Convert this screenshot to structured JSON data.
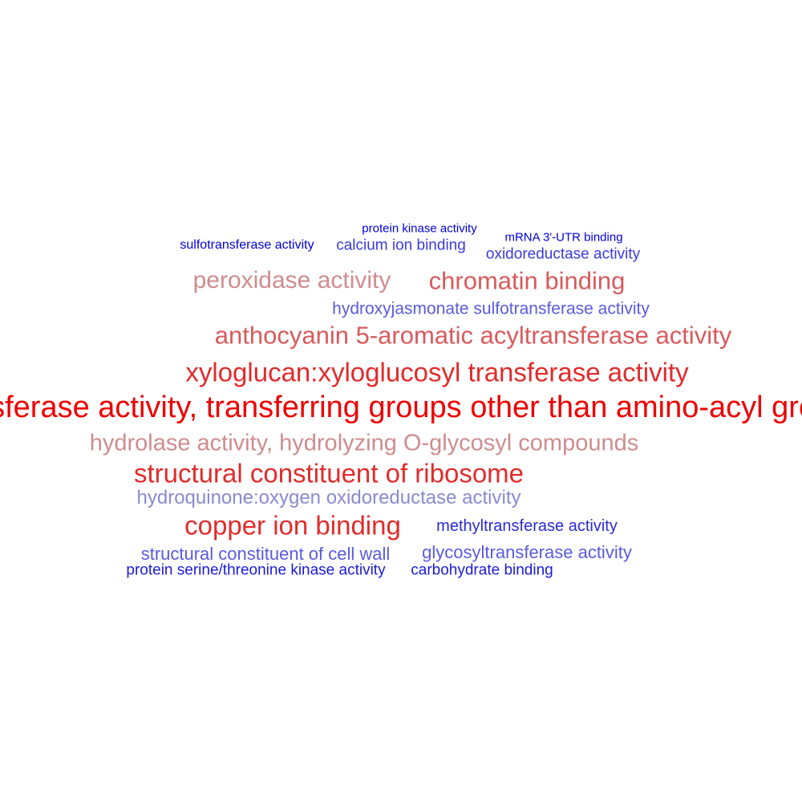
{
  "terms": [
    {
      "text": "sulfotransferase activity",
      "color": "#0000dd"
    },
    {
      "text": "protein kinase activity",
      "color": "#0000dd"
    },
    {
      "text": "calcium ion binding",
      "color": "#3a3ae0"
    },
    {
      "text": "mRNA 3'-UTR binding",
      "color": "#0000dd"
    },
    {
      "text": "oxidoreductase activity",
      "color": "#3a3ae0"
    },
    {
      "text": "peroxidase activity",
      "color": "#cf8c8e"
    },
    {
      "text": "chromatin binding",
      "color": "#d85a5c"
    },
    {
      "text": "hydroxyjasmonate sulfotransferase activity",
      "color": "#5a5ae0"
    },
    {
      "text": "anthocyanin 5-aromatic acyltransferase activity",
      "color": "#d85a5c"
    },
    {
      "text": "xyloglucan:xyloglucosyl transferase activity",
      "color": "#e22b2b"
    },
    {
      "text": "transferase activity, transferring groups other than amino-acyl groups",
      "color": "#ee0000"
    },
    {
      "text": "hydrolase activity, hydrolyzing O-glycosyl compounds",
      "color": "#cf8c8e"
    },
    {
      "text": "structural constituent of ribosome",
      "color": "#e22b2b"
    },
    {
      "text": "hydroquinone:oxygen oxidoreductase activity",
      "color": "#8a8ad0"
    },
    {
      "text": "copper ion binding",
      "color": "#e22b2b"
    },
    {
      "text": "methyltransferase activity",
      "color": "#2a2ad8"
    },
    {
      "text": "structural constituent of cell wall",
      "color": "#5a5ae0"
    },
    {
      "text": "glycosyltransferase activity",
      "color": "#5a5ae0"
    },
    {
      "text": "protein serine/threonine kinase activity",
      "color": "#1a1ad8"
    },
    {
      "text": "carbohydrate binding",
      "color": "#1a1ad8"
    }
  ]
}
